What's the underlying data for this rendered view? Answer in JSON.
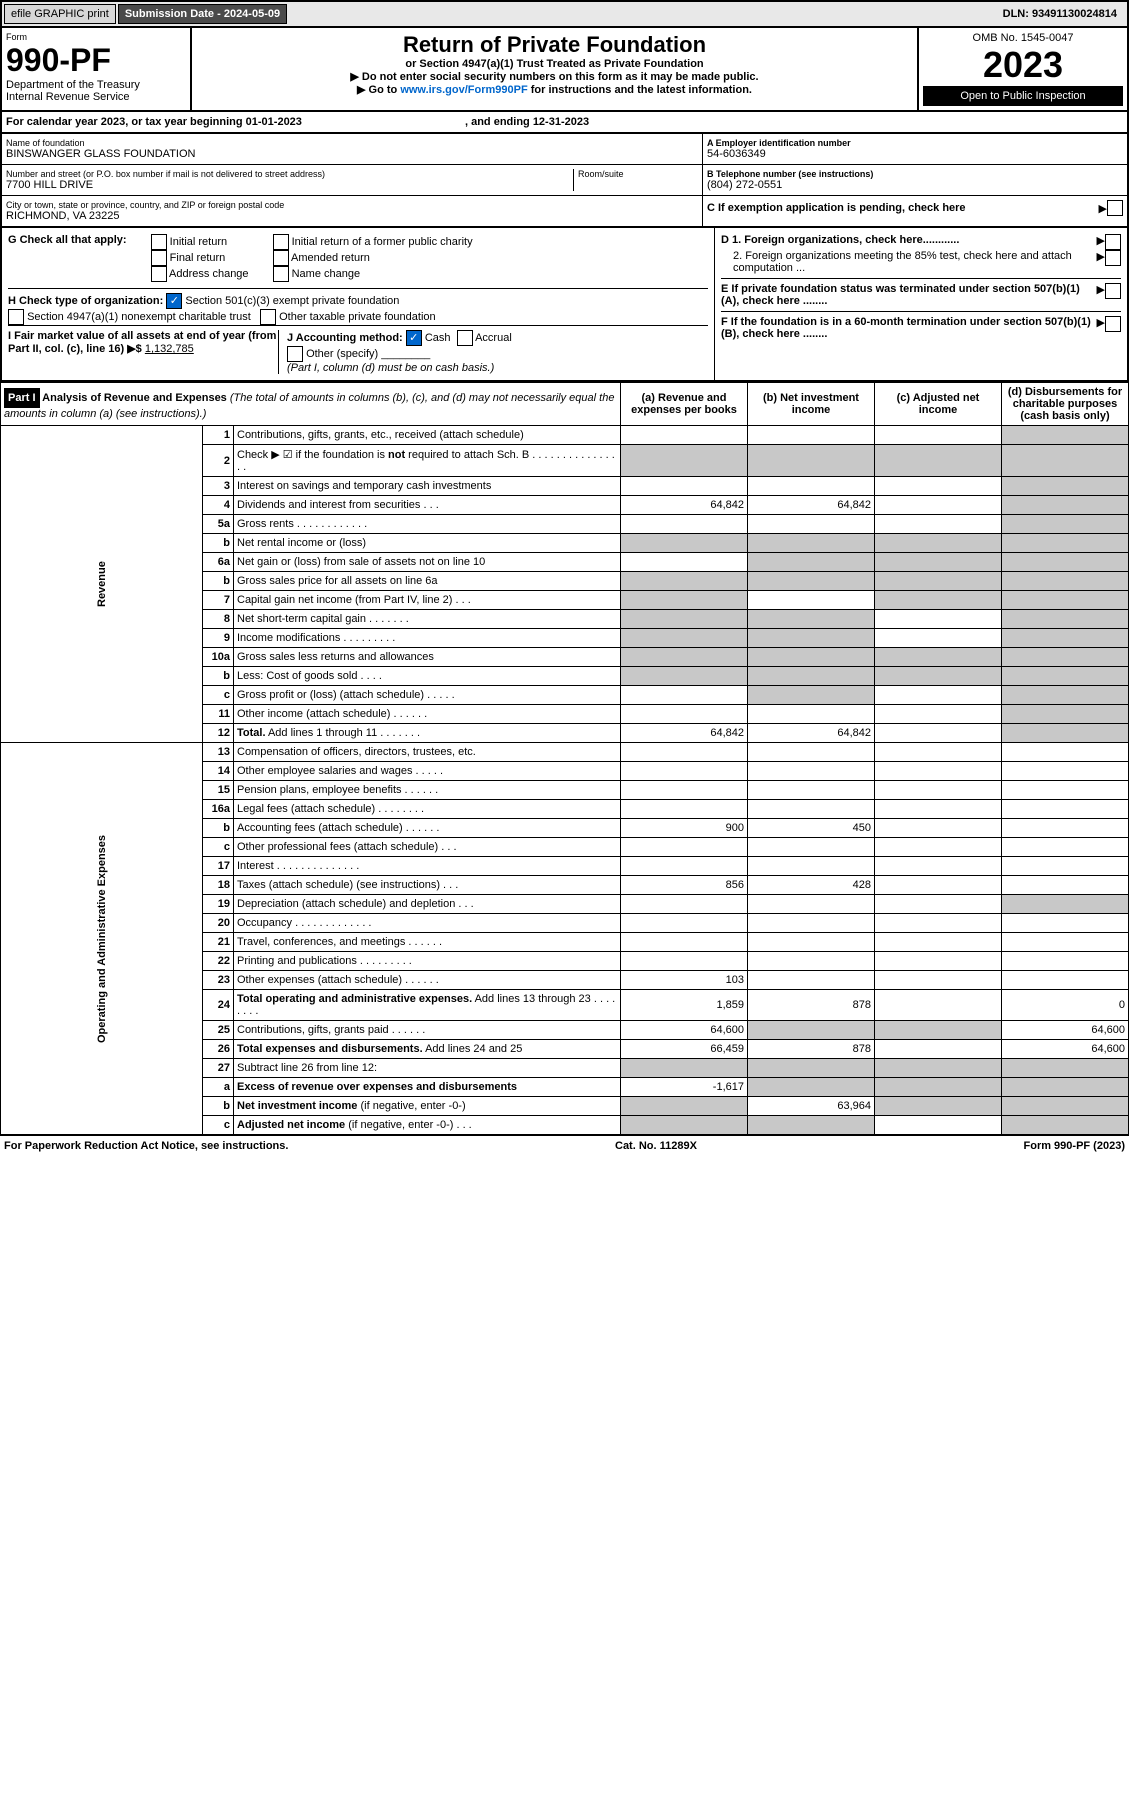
{
  "topbar": {
    "efile": "efile GRAPHIC print",
    "subdate_label": "Submission Date - 2024-05-09",
    "dln": "DLN: 93491130024814"
  },
  "header": {
    "form_word": "Form",
    "formno": "990-PF",
    "dept": "Department of the Treasury",
    "irs": "Internal Revenue Service",
    "title": "Return of Private Foundation",
    "subtitle": "or Section 4947(a)(1) Trust Treated as Private Foundation",
    "note1": "▶ Do not enter social security numbers on this form as it may be made public.",
    "note2": "▶ Go to www.irs.gov/Form990PF for instructions and the latest information.",
    "omb": "OMB No. 1545-0047",
    "year": "2023",
    "open": "Open to Public Inspection"
  },
  "cal": "For calendar year 2023, or tax year beginning 01-01-2023",
  "cal_end": ", and ending 12-31-2023",
  "addr": {
    "name_lbl": "Name of foundation",
    "name": "BINSWANGER GLASS FOUNDATION",
    "street_lbl": "Number and street (or P.O. box number if mail is not delivered to street address)",
    "street": "7700 HILL DRIVE",
    "room_lbl": "Room/suite",
    "city_lbl": "City or town, state or province, country, and ZIP or foreign postal code",
    "city": "RICHMOND, VA  23225",
    "ein_lbl": "A Employer identification number",
    "ein": "54-6036349",
    "tel_lbl": "B Telephone number (see instructions)",
    "tel": "(804) 272-0551",
    "c": "C If exemption application is pending, check here"
  },
  "secG": {
    "label": "G Check all that apply:",
    "opts": [
      "Initial return",
      "Final return",
      "Address change",
      "Initial return of a former public charity",
      "Amended return",
      "Name change"
    ],
    "H": "H Check type of organization:",
    "h1": "Section 501(c)(3) exempt private foundation",
    "h2": "Section 4947(a)(1) nonexempt charitable trust",
    "h3": "Other taxable private foundation",
    "I": "I Fair market value of all assets at end of year (from Part II, col. (c), line 16) ▶$",
    "Ival": "1,132,785",
    "J": "J Accounting method:",
    "j1": "Cash",
    "j2": "Accrual",
    "j3": "Other (specify)",
    "jnote": "(Part I, column (d) must be on cash basis.)",
    "D1": "D 1. Foreign organizations, check here............",
    "D2": "2. Foreign organizations meeting the 85% test, check here and attach computation ...",
    "E": "E If private foundation status was terminated under section 507(b)(1)(A), check here ........",
    "F": "F If the foundation is in a 60-month termination under section 507(b)(1)(B), check here ........"
  },
  "part1": {
    "header": "Part I",
    "title": "Analysis of Revenue and Expenses",
    "sub": "(The total of amounts in columns (b), (c), and (d) may not necessarily equal the amounts in column (a) (see instructions).)",
    "cols": [
      "(a) Revenue and expenses per books",
      "(b) Net investment income",
      "(c) Adjusted net income",
      "(d) Disbursements for charitable purposes (cash basis only)"
    ],
    "sidelabels": [
      "Revenue",
      "Operating and Administrative Expenses"
    ],
    "rows": [
      {
        "n": "1",
        "d": "Contributions, gifts, grants, etc., received (attach schedule)",
        "a": "",
        "b": "",
        "c": "",
        "dd": "",
        "grey": [
          "dd"
        ]
      },
      {
        "n": "2",
        "d": "Check ▶ ☑ if the foundation is <b>not</b> required to attach Sch. B  . . . . . . . . . . . . . . . .",
        "a": "",
        "b": "",
        "c": "",
        "dd": "",
        "grey": [
          "a",
          "b",
          "c",
          "dd"
        ]
      },
      {
        "n": "3",
        "d": "Interest on savings and temporary cash investments",
        "a": "",
        "b": "",
        "c": "",
        "dd": "",
        "grey": [
          "dd"
        ]
      },
      {
        "n": "4",
        "d": "Dividends and interest from securities   .  .  .",
        "a": "64,842",
        "b": "64,842",
        "c": "",
        "dd": "",
        "grey": [
          "dd"
        ]
      },
      {
        "n": "5a",
        "d": "Gross rents  .  .  .  .  .  .  .  .  .  .  .  .",
        "a": "",
        "b": "",
        "c": "",
        "dd": "",
        "grey": [
          "dd"
        ]
      },
      {
        "n": "b",
        "d": "Net rental income or (loss)",
        "a": "",
        "b": "",
        "c": "",
        "dd": "",
        "grey": [
          "a",
          "b",
          "c",
          "dd"
        ]
      },
      {
        "n": "6a",
        "d": "Net gain or (loss) from sale of assets not on line 10",
        "a": "",
        "b": "",
        "c": "",
        "dd": "",
        "grey": [
          "b",
          "c",
          "dd"
        ]
      },
      {
        "n": "b",
        "d": "Gross sales price for all assets on line 6a",
        "a": "",
        "b": "",
        "c": "",
        "dd": "",
        "grey": [
          "a",
          "b",
          "c",
          "dd"
        ]
      },
      {
        "n": "7",
        "d": "Capital gain net income (from Part IV, line 2)  .  .  .",
        "a": "",
        "b": "",
        "c": "",
        "dd": "",
        "grey": [
          "a",
          "c",
          "dd"
        ]
      },
      {
        "n": "8",
        "d": "Net short-term capital gain  .  .  .  .  .  .  .",
        "a": "",
        "b": "",
        "c": "",
        "dd": "",
        "grey": [
          "a",
          "b",
          "dd"
        ]
      },
      {
        "n": "9",
        "d": "Income modifications  .  .  .  .  .  .  .  .  .",
        "a": "",
        "b": "",
        "c": "",
        "dd": "",
        "grey": [
          "a",
          "b",
          "dd"
        ]
      },
      {
        "n": "10a",
        "d": "Gross sales less returns and allowances",
        "a": "",
        "b": "",
        "c": "",
        "dd": "",
        "grey": [
          "a",
          "b",
          "c",
          "dd"
        ]
      },
      {
        "n": "b",
        "d": "Less: Cost of goods sold  .  .  .  .",
        "a": "",
        "b": "",
        "c": "",
        "dd": "",
        "grey": [
          "a",
          "b",
          "c",
          "dd"
        ]
      },
      {
        "n": "c",
        "d": "Gross profit or (loss) (attach schedule)   .  .  .  .  .",
        "a": "",
        "b": "",
        "c": "",
        "dd": "",
        "grey": [
          "b",
          "dd"
        ]
      },
      {
        "n": "11",
        "d": "Other income (attach schedule)  .  .  .  .  .  .",
        "a": "",
        "b": "",
        "c": "",
        "dd": "",
        "grey": [
          "dd"
        ]
      },
      {
        "n": "12",
        "d": "<b>Total.</b> Add lines 1 through 11  .  .  .  .  .  .  .",
        "a": "64,842",
        "b": "64,842",
        "c": "",
        "dd": "",
        "grey": [
          "dd"
        ]
      },
      {
        "n": "13",
        "d": "Compensation of officers, directors, trustees, etc.",
        "a": "",
        "b": "",
        "c": "",
        "dd": ""
      },
      {
        "n": "14",
        "d": "Other employee salaries and wages  .  .  .  .  .",
        "a": "",
        "b": "",
        "c": "",
        "dd": ""
      },
      {
        "n": "15",
        "d": "Pension plans, employee benefits  .  .  .  .  .  .",
        "a": "",
        "b": "",
        "c": "",
        "dd": ""
      },
      {
        "n": "16a",
        "d": "Legal fees (attach schedule)  .  .  .  .  .  .  .  .",
        "a": "",
        "b": "",
        "c": "",
        "dd": ""
      },
      {
        "n": "b",
        "d": "Accounting fees (attach schedule)  .  .  .  .  .  .",
        "a": "900",
        "b": "450",
        "c": "",
        "dd": ""
      },
      {
        "n": "c",
        "d": "Other professional fees (attach schedule)  .  .  .",
        "a": "",
        "b": "",
        "c": "",
        "dd": ""
      },
      {
        "n": "17",
        "d": "Interest  .  .  .  .  .  .  .  .  .  .  .  .  .  .",
        "a": "",
        "b": "",
        "c": "",
        "dd": ""
      },
      {
        "n": "18",
        "d": "Taxes (attach schedule) (see instructions)   .  .  .",
        "a": "856",
        "b": "428",
        "c": "",
        "dd": ""
      },
      {
        "n": "19",
        "d": "Depreciation (attach schedule) and depletion   .  .  .",
        "a": "",
        "b": "",
        "c": "",
        "dd": "",
        "grey": [
          "dd"
        ]
      },
      {
        "n": "20",
        "d": "Occupancy  .  .  .  .  .  .  .  .  .  .  .  .  .",
        "a": "",
        "b": "",
        "c": "",
        "dd": ""
      },
      {
        "n": "21",
        "d": "Travel, conferences, and meetings  .  .  .  .  .  .",
        "a": "",
        "b": "",
        "c": "",
        "dd": ""
      },
      {
        "n": "22",
        "d": "Printing and publications  .  .  .  .  .  .  .  .  .",
        "a": "",
        "b": "",
        "c": "",
        "dd": ""
      },
      {
        "n": "23",
        "d": "Other expenses (attach schedule)  .  .  .  .  .  .",
        "a": "103",
        "b": "",
        "c": "",
        "dd": ""
      },
      {
        "n": "24",
        "d": "<b>Total operating and administrative expenses.</b> Add lines 13 through 23  .  .  .  .  .  .  .  .",
        "a": "1,859",
        "b": "878",
        "c": "",
        "dd": "0"
      },
      {
        "n": "25",
        "d": "Contributions, gifts, grants paid  .  .  .  .  .  .",
        "a": "64,600",
        "b": "",
        "c": "",
        "dd": "64,600",
        "grey": [
          "b",
          "c"
        ]
      },
      {
        "n": "26",
        "d": "<b>Total expenses and disbursements.</b> Add lines 24 and 25",
        "a": "66,459",
        "b": "878",
        "c": "",
        "dd": "64,600"
      },
      {
        "n": "27",
        "d": "Subtract line 26 from line 12:",
        "a": "",
        "b": "",
        "c": "",
        "dd": "",
        "grey": [
          "a",
          "b",
          "c",
          "dd"
        ]
      },
      {
        "n": "a",
        "d": "<b>Excess of revenue over expenses and disbursements</b>",
        "a": "-1,617",
        "b": "",
        "c": "",
        "dd": "",
        "grey": [
          "b",
          "c",
          "dd"
        ]
      },
      {
        "n": "b",
        "d": "<b>Net investment income</b> (if negative, enter -0-)",
        "a": "",
        "b": "63,964",
        "c": "",
        "dd": "",
        "grey": [
          "a",
          "c",
          "dd"
        ]
      },
      {
        "n": "c",
        "d": "<b>Adjusted net income</b> (if negative, enter -0-)  .  .  .",
        "a": "",
        "b": "",
        "c": "",
        "dd": "",
        "grey": [
          "a",
          "b",
          "dd"
        ]
      }
    ]
  },
  "foot": {
    "l": "For Paperwork Reduction Act Notice, see instructions.",
    "m": "Cat. No. 11289X",
    "r": "Form 990-PF (2023)"
  }
}
